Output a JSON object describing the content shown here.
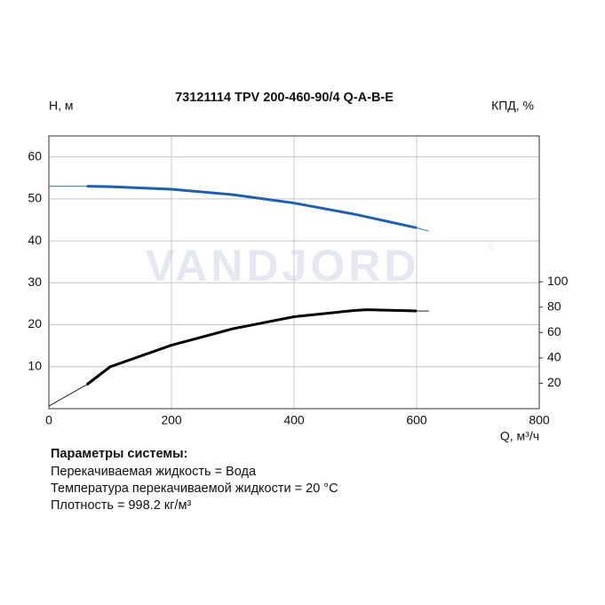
{
  "chart_data": {
    "type": "line",
    "title": "73121114 TPV 200-460-90/4 Q-A-B-E",
    "ylabel": "H, м",
    "y2label": "КПД, %",
    "xlabel": "Q, м³/ч",
    "watermark": "VANDJORD",
    "watermark_mark": "®",
    "xlim": [
      0,
      800
    ],
    "xticks": [
      0,
      200,
      400,
      600,
      800
    ],
    "ylim": [
      0,
      65
    ],
    "yticks": [
      10,
      20,
      30,
      40,
      50,
      60
    ],
    "y2lim": [
      0,
      215
    ],
    "y2ticks": [
      20,
      40,
      60,
      80,
      100
    ],
    "grid": true,
    "operating_range": [
      62,
      600
    ],
    "series": [
      {
        "color": "#1f5fb0",
        "x": [
          0,
          62,
          100,
          200,
          300,
          400,
          500,
          600,
          620
        ],
        "values": [
          53,
          53,
          52.9,
          52.3,
          51,
          49,
          46.3,
          43.1,
          42.3
        ]
      },
      {
        "color": "#000000",
        "axis": "y2",
        "x": [
          0,
          62,
          100,
          200,
          300,
          400,
          500,
          520,
          600,
          620
        ],
        "values": [
          2,
          19,
          33,
          50,
          63,
          72.5,
          77.5,
          78,
          77,
          77
        ]
      }
    ]
  },
  "parameters": {
    "heading": "Параметры системы:",
    "lines": [
      "Перекачиваемая жидкость = Вода",
      "Температура перекачиваемой жидкости = 20 °C",
      "Плотность = 998.2 кг/м³"
    ]
  }
}
